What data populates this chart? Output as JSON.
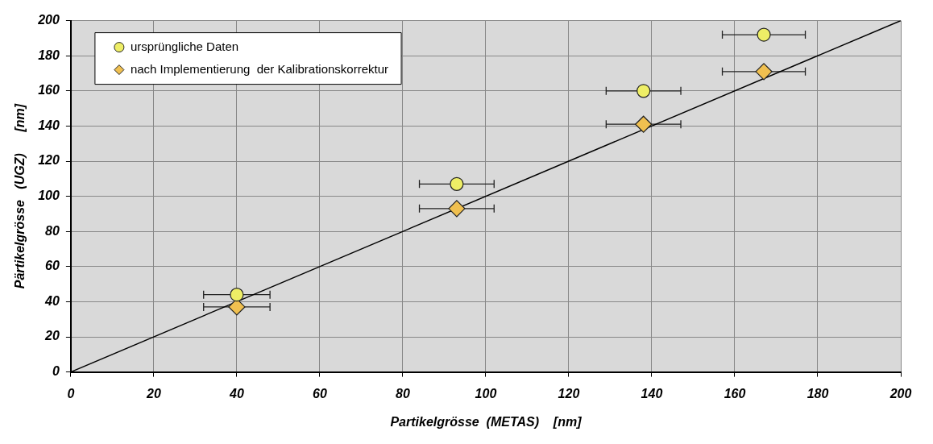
{
  "chart_data": {
    "type": "scatter",
    "xlabel": "Partikelgrösse  (METAS)    [nm]",
    "ylabel": "Pärtikelgrösse   (UGZ)      [nm]",
    "x": [
      40,
      93,
      138,
      167
    ],
    "series": [
      {
        "name": "ursprüngliche Daten",
        "type": "scatter",
        "marker": "circle",
        "color": "#eeee66",
        "values": [
          44,
          107,
          160,
          192
        ],
        "xerrors": [
          8,
          9,
          9,
          10
        ]
      },
      {
        "name": "nach Implementierung  der Kalibrationskorrektur",
        "type": "scatter",
        "marker": "diamond",
        "color": "#f0c050",
        "values": [
          37,
          93,
          141,
          171
        ],
        "xerrors": [
          8,
          9,
          9,
          10
        ]
      },
      {
        "type": "line",
        "marker": "none",
        "color": "#000000",
        "x": [
          0,
          200
        ],
        "values": [
          0,
          200
        ]
      }
    ],
    "xlim": [
      0,
      200
    ],
    "ylim": [
      0,
      200
    ],
    "xticks": [
      0,
      20,
      40,
      60,
      80,
      100,
      120,
      140,
      160,
      180,
      200
    ],
    "yticks": [
      0,
      20,
      40,
      60,
      80,
      100,
      120,
      140,
      160,
      180,
      200
    ],
    "grid": true,
    "legend": "top left"
  }
}
